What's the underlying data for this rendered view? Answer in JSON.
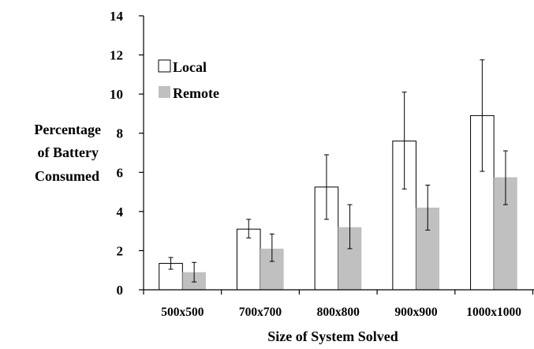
{
  "chart_data": {
    "type": "bar",
    "title": "",
    "xlabel": "Size of System Solved",
    "ylabel_lines": [
      "Percentage",
      "of Battery",
      "Consumed"
    ],
    "categories": [
      "500x500",
      "700x700",
      "800x800",
      "900x900",
      "1000x1000"
    ],
    "ylim": [
      0,
      14
    ],
    "yticks": [
      "0",
      "2",
      "4",
      "6",
      "8",
      "10",
      "12",
      "14"
    ],
    "grid": false,
    "legend_position": "top-left",
    "series": [
      {
        "name": "Local",
        "color": "#ffffff",
        "values": [
          1.35,
          3.1,
          5.25,
          7.6,
          8.9
        ],
        "error_low": [
          1.05,
          2.65,
          3.6,
          5.15,
          6.05
        ],
        "error_high": [
          1.65,
          3.6,
          6.9,
          10.1,
          11.75
        ]
      },
      {
        "name": "Remote",
        "color": "#c0c0c0",
        "values": [
          0.9,
          2.1,
          3.2,
          4.2,
          5.75
        ],
        "error_low": [
          0.4,
          1.45,
          2.1,
          3.05,
          4.35
        ],
        "error_high": [
          1.4,
          2.85,
          4.35,
          5.35,
          7.1
        ]
      }
    ]
  }
}
